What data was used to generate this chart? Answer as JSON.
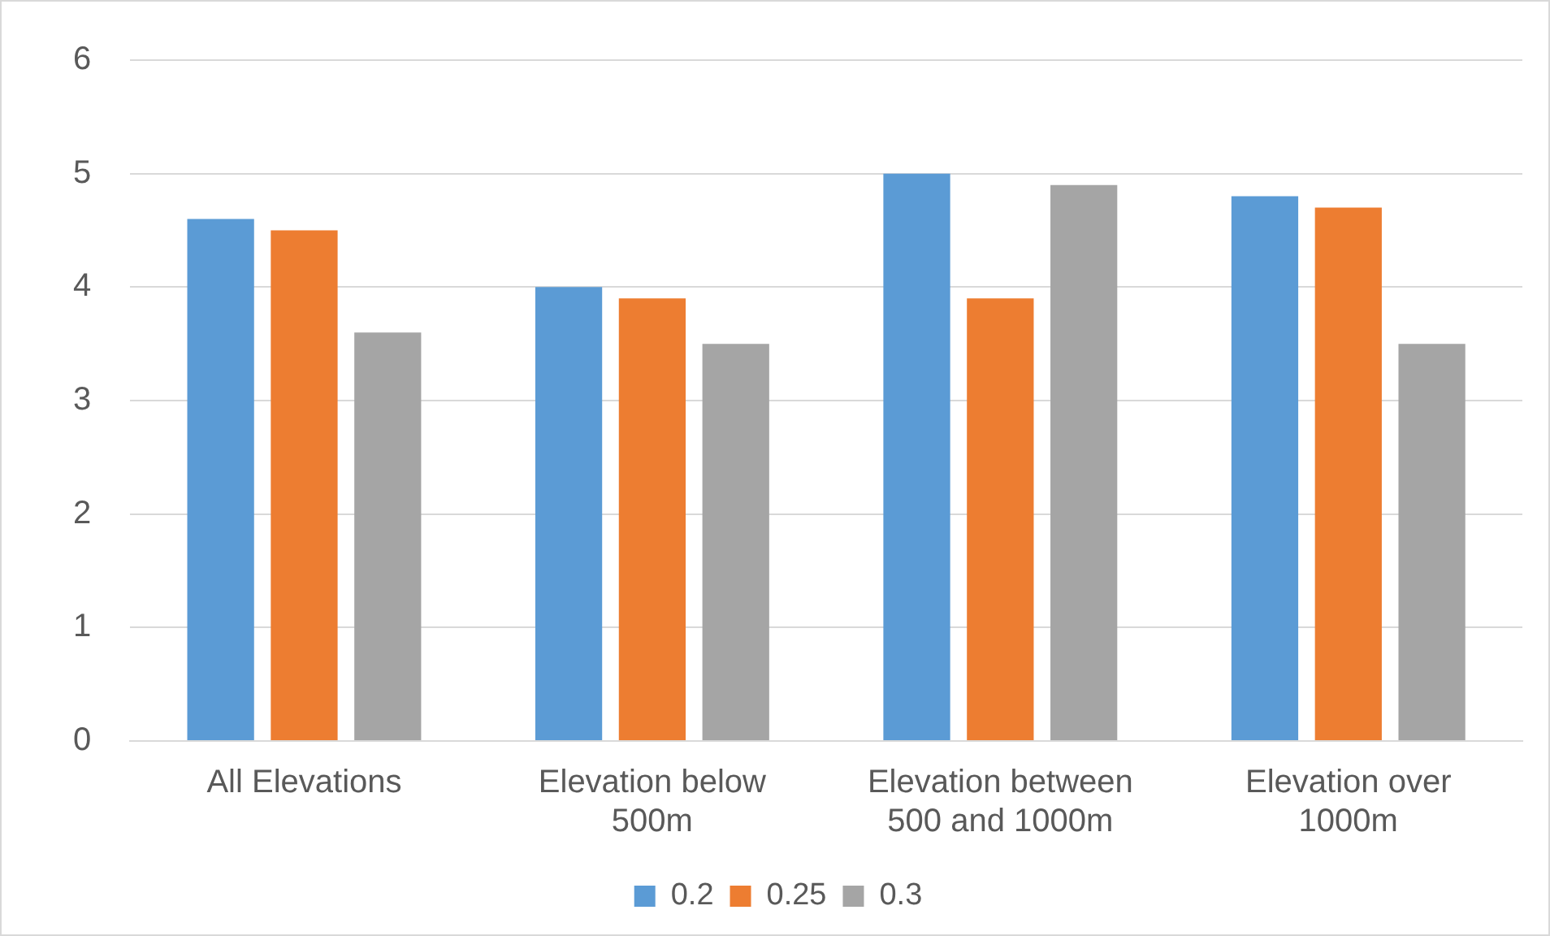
{
  "chart_data": {
    "type": "bar",
    "categories": [
      "All Elevations",
      "Elevation below 500m",
      "Elevation between 500 and 1000m",
      "Elevation over 1000m"
    ],
    "series": [
      {
        "name": "0.2",
        "color": "#5b9bd5",
        "values": [
          4.6,
          4.0,
          5.0,
          4.8
        ]
      },
      {
        "name": "0.25",
        "color": "#ed7d31",
        "values": [
          4.5,
          3.9,
          3.9,
          4.7
        ]
      },
      {
        "name": "0.3",
        "color": "#a5a5a5",
        "values": [
          3.6,
          3.5,
          4.9,
          3.5
        ]
      }
    ],
    "ylim": [
      0,
      6
    ],
    "yticks": [
      0,
      1,
      2,
      3,
      4,
      5,
      6
    ],
    "grid": "y",
    "legend": "bottom"
  }
}
